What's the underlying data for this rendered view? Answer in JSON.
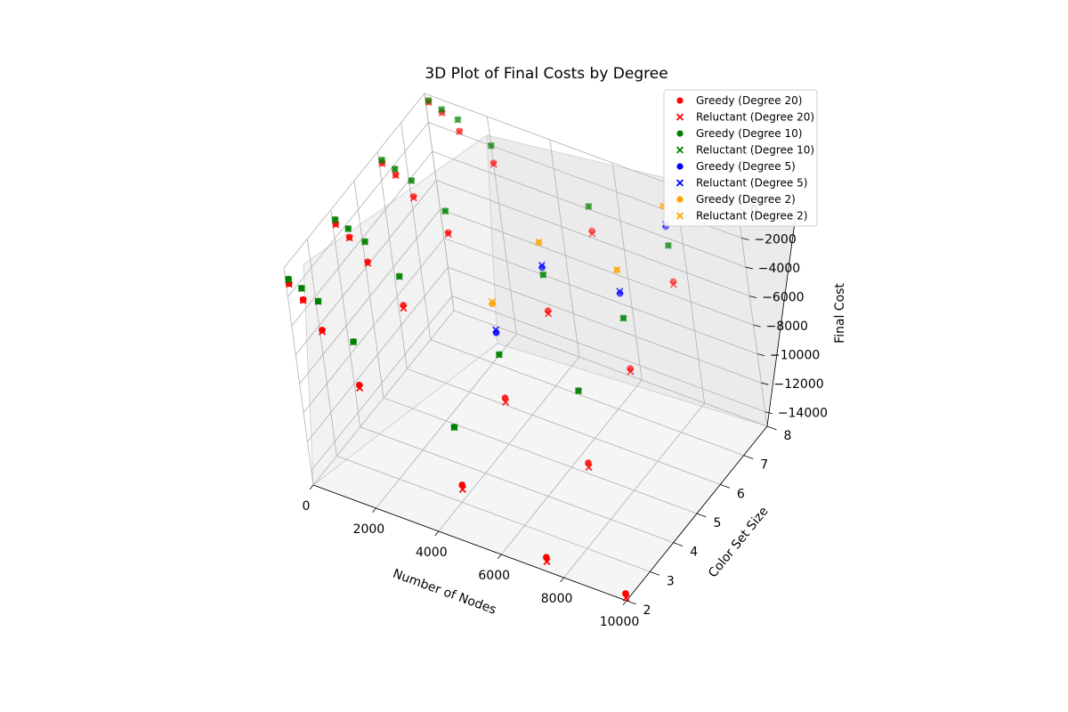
{
  "chart_data": {
    "type": "scatter",
    "title": "3D Plot of Final Costs by Degree",
    "xlabel": "Number of Nodes",
    "ylabel": "Color Set Size",
    "zlabel": "Final Cost",
    "xlim": [
      0,
      10000
    ],
    "ylim": [
      2,
      8
    ],
    "zlim": [
      -15000,
      0
    ],
    "x_ticks": [
      "0",
      "2000",
      "4000",
      "6000",
      "8000",
      "10000"
    ],
    "y_ticks": [
      "2",
      "3",
      "4",
      "5",
      "6",
      "7",
      "8"
    ],
    "z_ticks": [
      "0",
      "−2000",
      "−4000",
      "−6000",
      "−8000",
      "−10000",
      "−12000",
      "−14000"
    ],
    "grid": true,
    "legend_position": "top-right",
    "series": [
      {
        "name": "Greedy (Degree 20)",
        "marker": "o",
        "color": "#ff0000",
        "points": [
          [
            100,
            2,
            -1000
          ],
          [
            500,
            2,
            -1800
          ],
          [
            1000,
            2,
            -3500
          ],
          [
            2000,
            2,
            -6500
          ],
          [
            5000,
            2,
            -11000
          ],
          [
            7500,
            2,
            -14000
          ],
          [
            10000,
            2,
            -14500
          ],
          [
            100,
            4,
            -900
          ],
          [
            500,
            4,
            -1500
          ],
          [
            1000,
            4,
            -2800
          ],
          [
            2000,
            4,
            -5000
          ],
          [
            5000,
            4,
            -9000
          ],
          [
            7500,
            4,
            -11500
          ],
          [
            100,
            6,
            -700
          ],
          [
            500,
            6,
            -1200
          ],
          [
            1000,
            6,
            -2300
          ],
          [
            2000,
            6,
            -4000
          ],
          [
            5000,
            6,
            -7000
          ],
          [
            7500,
            6,
            -9000
          ],
          [
            100,
            8,
            -500
          ],
          [
            500,
            8,
            -900
          ],
          [
            1000,
            8,
            -1800
          ],
          [
            2000,
            8,
            -3200
          ],
          [
            5000,
            8,
            -5500
          ],
          [
            7500,
            8,
            -7000
          ]
        ]
      },
      {
        "name": "Reluctant (Degree 20)",
        "marker": "x",
        "color": "#ff0000",
        "points": [
          [
            100,
            2,
            -1050
          ],
          [
            500,
            2,
            -1850
          ],
          [
            1000,
            2,
            -3600
          ],
          [
            2000,
            2,
            -6700
          ],
          [
            5000,
            2,
            -11300
          ],
          [
            7500,
            2,
            -14300
          ],
          [
            10000,
            2,
            -14800
          ],
          [
            100,
            4,
            -950
          ],
          [
            500,
            4,
            -1550
          ],
          [
            1000,
            4,
            -2900
          ],
          [
            2000,
            4,
            -5200
          ],
          [
            5000,
            4,
            -9300
          ],
          [
            7500,
            4,
            -11800
          ],
          [
            100,
            6,
            -750
          ],
          [
            500,
            6,
            -1250
          ],
          [
            1000,
            6,
            -2400
          ],
          [
            2000,
            6,
            -4100
          ],
          [
            5000,
            6,
            -7200
          ],
          [
            7500,
            6,
            -9200
          ],
          [
            100,
            8,
            -550
          ],
          [
            500,
            8,
            -950
          ],
          [
            1000,
            8,
            -1850
          ],
          [
            2000,
            8,
            -3300
          ],
          [
            5000,
            8,
            -5700
          ],
          [
            7500,
            8,
            -7200
          ]
        ]
      },
      {
        "name": "Greedy (Degree 10)",
        "marker": "o",
        "color": "#008000",
        "points": [
          [
            100,
            2,
            -700
          ],
          [
            500,
            2,
            -1000
          ],
          [
            1000,
            2,
            -1500
          ],
          [
            2000,
            2,
            -3500
          ],
          [
            5000,
            2,
            -7000
          ],
          [
            100,
            4,
            -600
          ],
          [
            500,
            4,
            -900
          ],
          [
            1000,
            4,
            -1400
          ],
          [
            2000,
            4,
            -3000
          ],
          [
            5000,
            4,
            -6000
          ],
          [
            7500,
            4,
            -6500
          ],
          [
            100,
            6,
            -500
          ],
          [
            500,
            6,
            -800
          ],
          [
            1000,
            6,
            -1200
          ],
          [
            2000,
            6,
            -2500
          ],
          [
            5000,
            6,
            -4500
          ],
          [
            7500,
            6,
            -5500
          ],
          [
            100,
            8,
            -400
          ],
          [
            500,
            8,
            -700
          ],
          [
            1000,
            8,
            -1000
          ],
          [
            2000,
            8,
            -2000
          ],
          [
            5000,
            8,
            -3800
          ],
          [
            7500,
            8,
            -4500
          ]
        ]
      },
      {
        "name": "Reluctant (Degree 10)",
        "marker": "x",
        "color": "#008000",
        "points": [
          [
            100,
            2,
            -720
          ],
          [
            500,
            2,
            -1020
          ],
          [
            1000,
            2,
            -1520
          ],
          [
            2000,
            2,
            -3520
          ],
          [
            5000,
            2,
            -7020
          ],
          [
            100,
            4,
            -620
          ],
          [
            500,
            4,
            -920
          ],
          [
            1000,
            4,
            -1420
          ],
          [
            2000,
            4,
            -3020
          ],
          [
            5000,
            4,
            -6020
          ],
          [
            7500,
            4,
            -6520
          ],
          [
            100,
            6,
            -520
          ],
          [
            500,
            6,
            -820
          ],
          [
            1000,
            6,
            -1220
          ],
          [
            2000,
            6,
            -2520
          ],
          [
            5000,
            6,
            -4520
          ],
          [
            7500,
            6,
            -5520
          ],
          [
            100,
            8,
            -420
          ],
          [
            500,
            8,
            -720
          ],
          [
            1000,
            8,
            -1020
          ],
          [
            2000,
            8,
            -2020
          ],
          [
            5000,
            8,
            -3820
          ],
          [
            7500,
            8,
            -4520
          ]
        ]
      },
      {
        "name": "Greedy (Degree 5)",
        "marker": "o",
        "color": "#0000ff",
        "points": [
          [
            5000,
            4,
            -4500
          ],
          [
            5000,
            6,
            -4000
          ],
          [
            7500,
            6,
            -3800
          ],
          [
            7500,
            8,
            -3200
          ]
        ]
      },
      {
        "name": "Reluctant (Degree 5)",
        "marker": "x",
        "color": "#0000ff",
        "points": [
          [
            5000,
            4,
            -4300
          ],
          [
            5000,
            6,
            -3850
          ],
          [
            7500,
            6,
            -3650
          ],
          [
            7500,
            8,
            -3050
          ]
        ]
      },
      {
        "name": "Greedy (Degree 2)",
        "marker": "o",
        "color": "#ffa500",
        "points": [
          [
            5000,
            4,
            -2500
          ],
          [
            5000,
            6,
            -2300
          ],
          [
            7500,
            6,
            -2200
          ],
          [
            7500,
            8,
            -1800
          ]
        ]
      },
      {
        "name": "Reluctant (Degree 2)",
        "marker": "x",
        "color": "#ffa500",
        "points": [
          [
            5000,
            4,
            -2350
          ],
          [
            5000,
            6,
            -2250
          ],
          [
            7500,
            6,
            -2150
          ],
          [
            7500,
            8,
            -1750
          ]
        ]
      }
    ]
  }
}
